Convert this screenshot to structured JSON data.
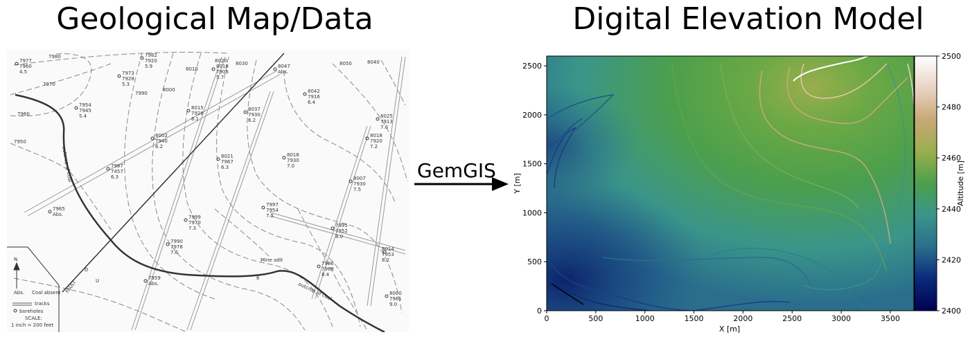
{
  "left_panel": {
    "title": "Geological Map/Data",
    "contour_labels": [
      "7980",
      "7970",
      "7960",
      "7950",
      "7990",
      "8000",
      "8010",
      "8020",
      "8030",
      "8040",
      "8050"
    ],
    "boreholes": [
      {
        "label": "7977",
        "sub": "7960",
        "val": "4.5"
      },
      {
        "label": "7982",
        "sub": "7920",
        "val": "5.9"
      },
      {
        "label": "7973",
        "sub": "7928",
        "val": "5.3"
      },
      {
        "label": "8018",
        "sub": "7906",
        "val": "5.7"
      },
      {
        "label": "8047",
        "sub": "Abs.",
        "val": ""
      },
      {
        "label": "7954",
        "sub": "7945",
        "val": "5.4"
      },
      {
        "label": "8015",
        "sub": "7926",
        "val": "6.1"
      },
      {
        "label": "8037",
        "sub": "7930",
        "val": "6.2"
      },
      {
        "label": "8042",
        "sub": "7916",
        "val": "6.4"
      },
      {
        "label": "8002",
        "sub": "7940",
        "val": "6.2"
      },
      {
        "label": "8025",
        "sub": "7913",
        "val": "7.0"
      },
      {
        "label": "8021",
        "sub": "7967",
        "val": "6.3"
      },
      {
        "label": "8016",
        "sub": "7930",
        "val": "7.0"
      },
      {
        "label": "8018",
        "sub": "7920",
        "val": "7.2"
      },
      {
        "label": "7987",
        "sub": "7457",
        "val": "6.3"
      },
      {
        "label": "8007",
        "sub": "7930",
        "val": "7.5"
      },
      {
        "label": "7965",
        "sub": "Abs.",
        "val": ""
      },
      {
        "label": "7997",
        "sub": "7954",
        "val": "7.5"
      },
      {
        "label": "7999",
        "sub": "7970",
        "val": "7.3"
      },
      {
        "label": "7995",
        "sub": "7952",
        "val": "8.0"
      },
      {
        "label": "7990",
        "sub": "7978",
        "val": "7.6"
      },
      {
        "label": "8014",
        "sub": "7953",
        "val": "8.2"
      },
      {
        "label": "7986",
        "sub": "7968",
        "val": "8.4"
      },
      {
        "label": "7959",
        "sub": "Abs.",
        "val": ""
      },
      {
        "label": "8000",
        "sub": "7981",
        "val": "9.0"
      }
    ],
    "annotations": {
      "outcrop_of_coal": "outcrop of coal",
      "fault": "FAULT",
      "fault_d": "D",
      "fault_u": "U",
      "mine_adit": "Mine adit",
      "mine_adit_num": "6",
      "north": "N"
    },
    "legend": {
      "abs_label": "Abs.",
      "abs_text": "Coal absent",
      "tracks": "tracks",
      "boreholes": "boreholes",
      "scale_label": "SCALE:",
      "scale_value": "1 inch = 200 feet"
    }
  },
  "arrow": {
    "label": "GemGIS"
  },
  "right_panel": {
    "title": "Digital Elevation Model",
    "chart_data": {
      "type": "heatmap",
      "xlabel": "X [m]",
      "ylabel": "Y [m]",
      "xlim": [
        0,
        3740
      ],
      "ylim": [
        0,
        2600
      ],
      "xticks": [
        0,
        500,
        1000,
        1500,
        2000,
        2500,
        3000,
        3500
      ],
      "yticks": [
        0,
        500,
        1000,
        1500,
        2000,
        2500
      ],
      "colorbar": {
        "label": "Altitude [m]",
        "range": [
          2400,
          2500
        ],
        "ticks": [
          2400,
          2420,
          2440,
          2460,
          2480,
          2500
        ],
        "colors": [
          "#000052",
          "#0a2a7a",
          "#2a6e8c",
          "#3a958a",
          "#4c9f4c",
          "#9aae4e",
          "#c9a876",
          "#e9d3c6",
          "#ffffff"
        ]
      }
    }
  }
}
